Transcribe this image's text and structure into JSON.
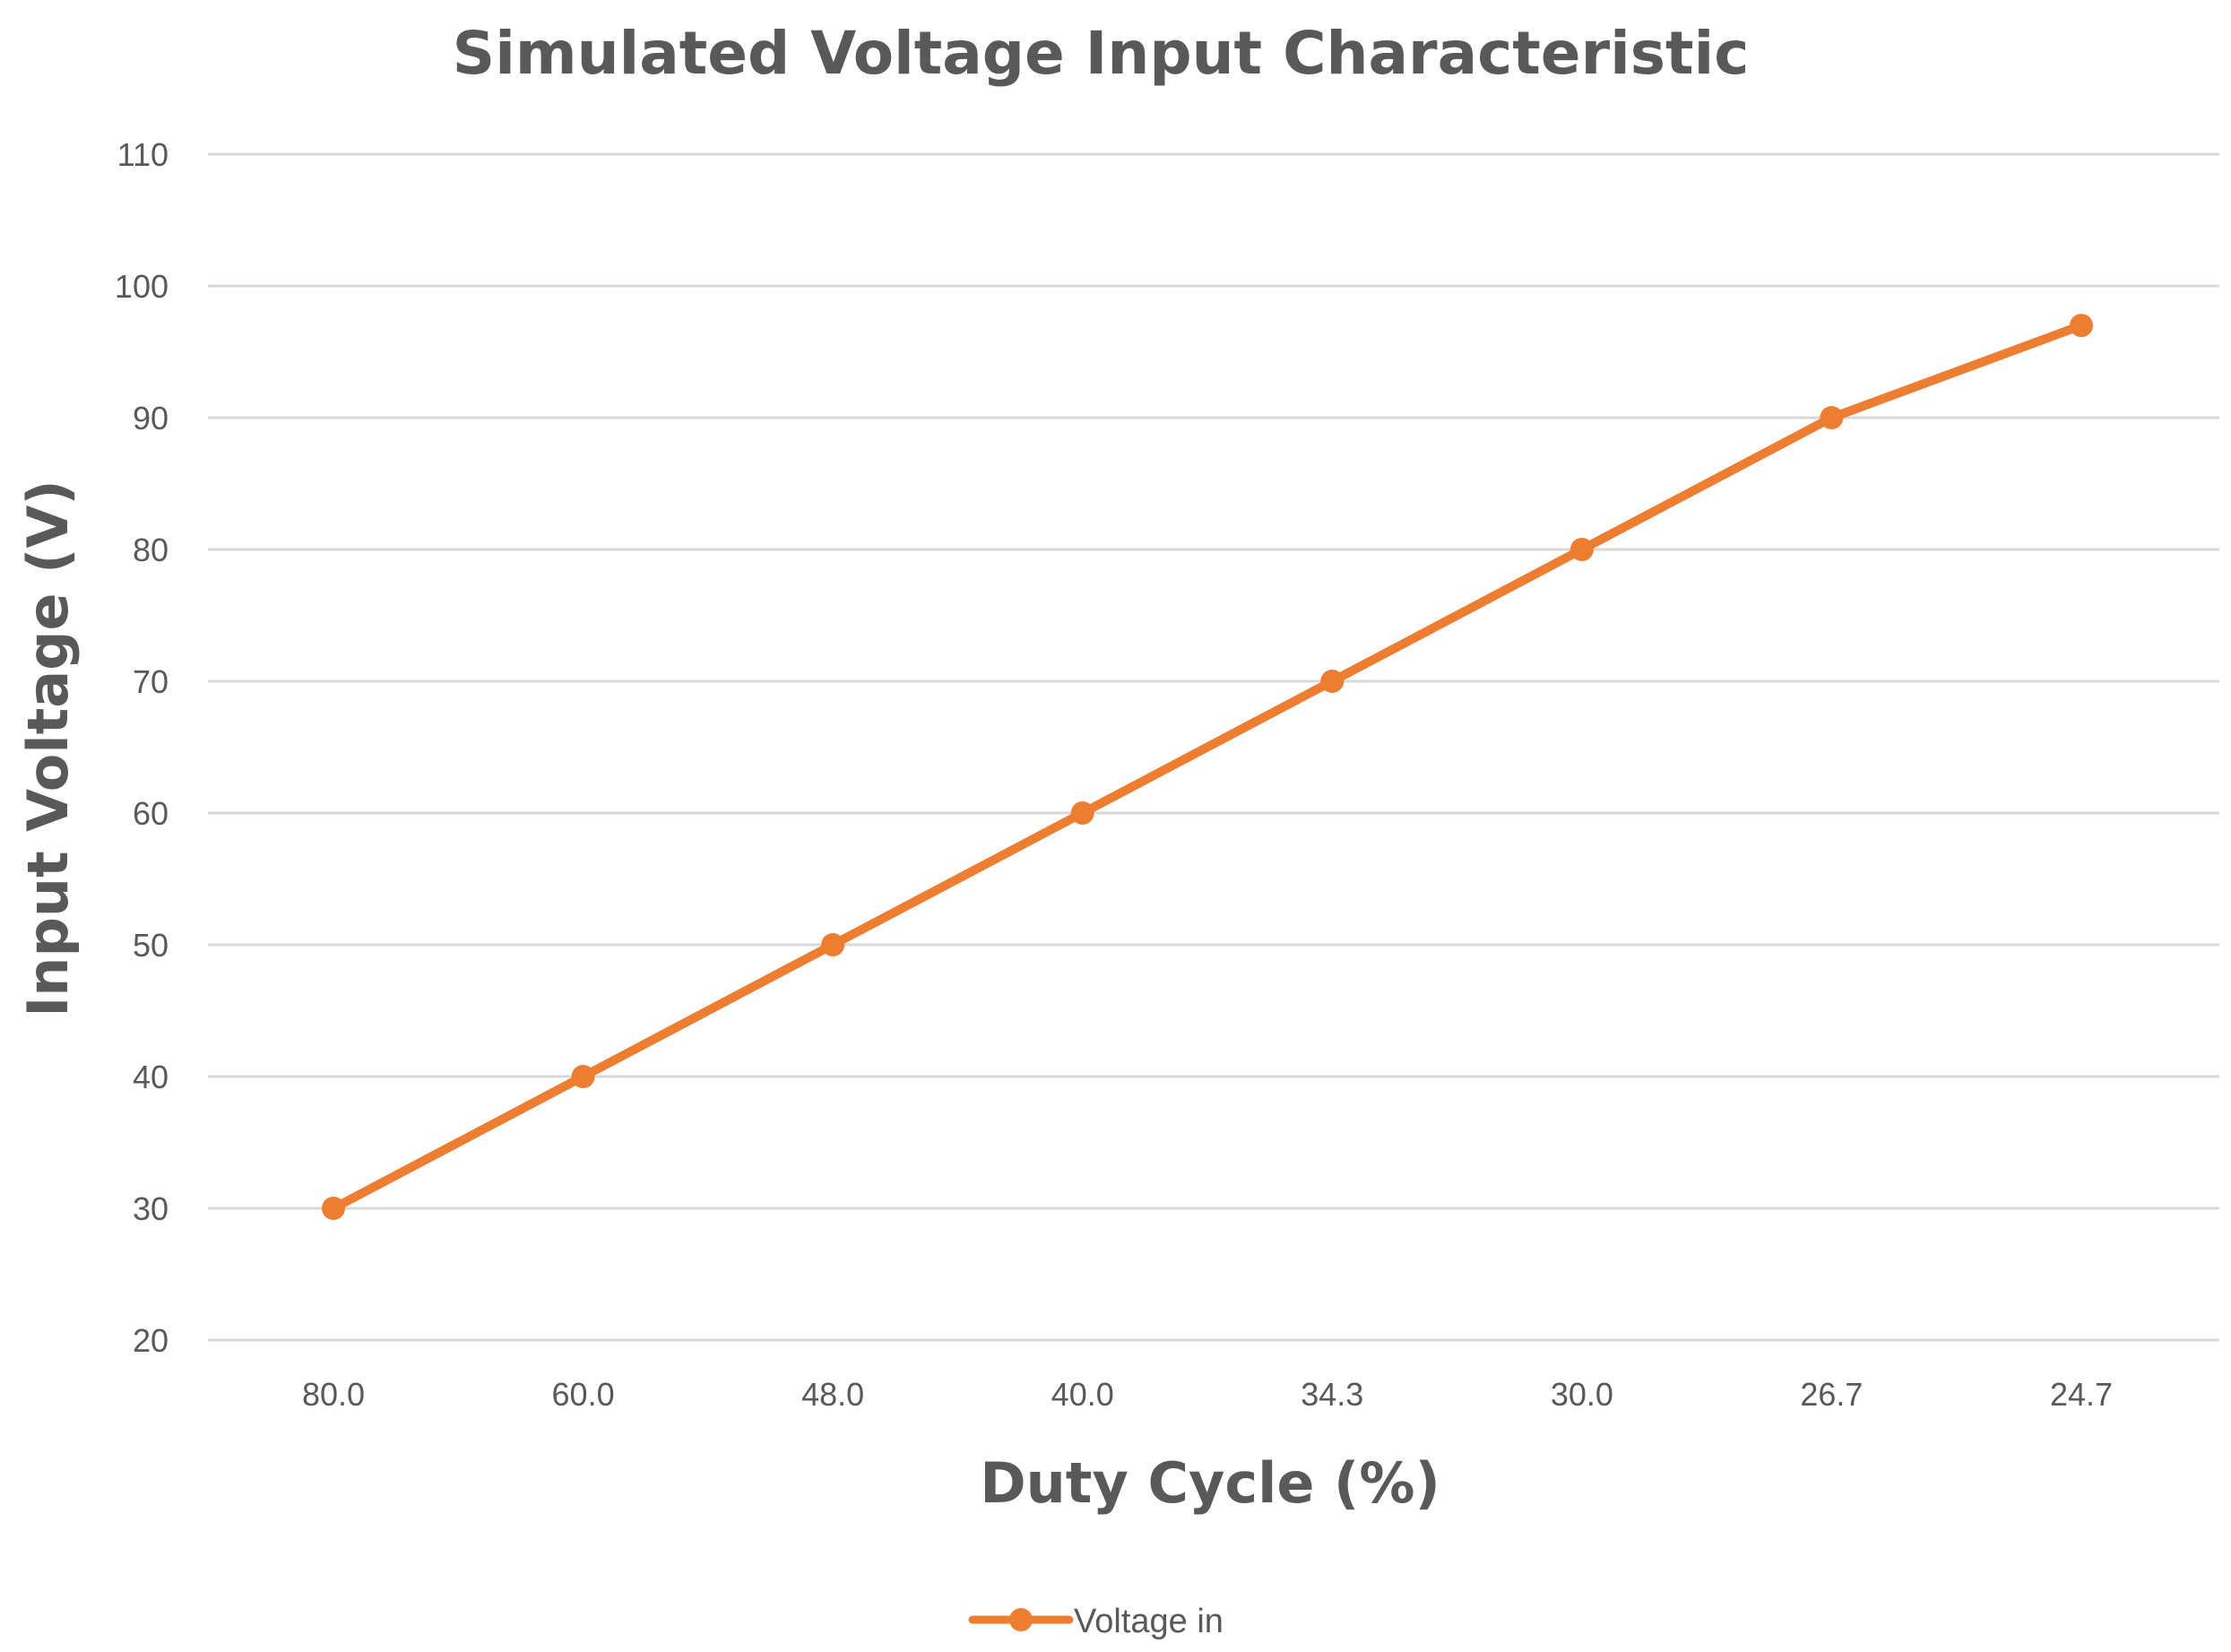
{
  "chart_data": {
    "type": "line",
    "title": "Simulated Voltage Input Characteristic",
    "xlabel": "Duty Cycle (%)",
    "ylabel": "Input Voltage (V)",
    "categories": [
      "80.0",
      "60.0",
      "48.0",
      "40.0",
      "34.3",
      "30.0",
      "26.7",
      "24.7"
    ],
    "series": [
      {
        "name": "Voltage in",
        "color": "#ED7D31",
        "values": [
          30,
          40,
          50,
          60,
          70,
          80,
          90,
          97
        ]
      }
    ],
    "ylim": [
      20,
      110
    ],
    "yticks": [
      "20",
      "30",
      "40",
      "50",
      "60",
      "70",
      "80",
      "90",
      "100",
      "110"
    ],
    "grid": true,
    "legend_position": "bottom"
  }
}
